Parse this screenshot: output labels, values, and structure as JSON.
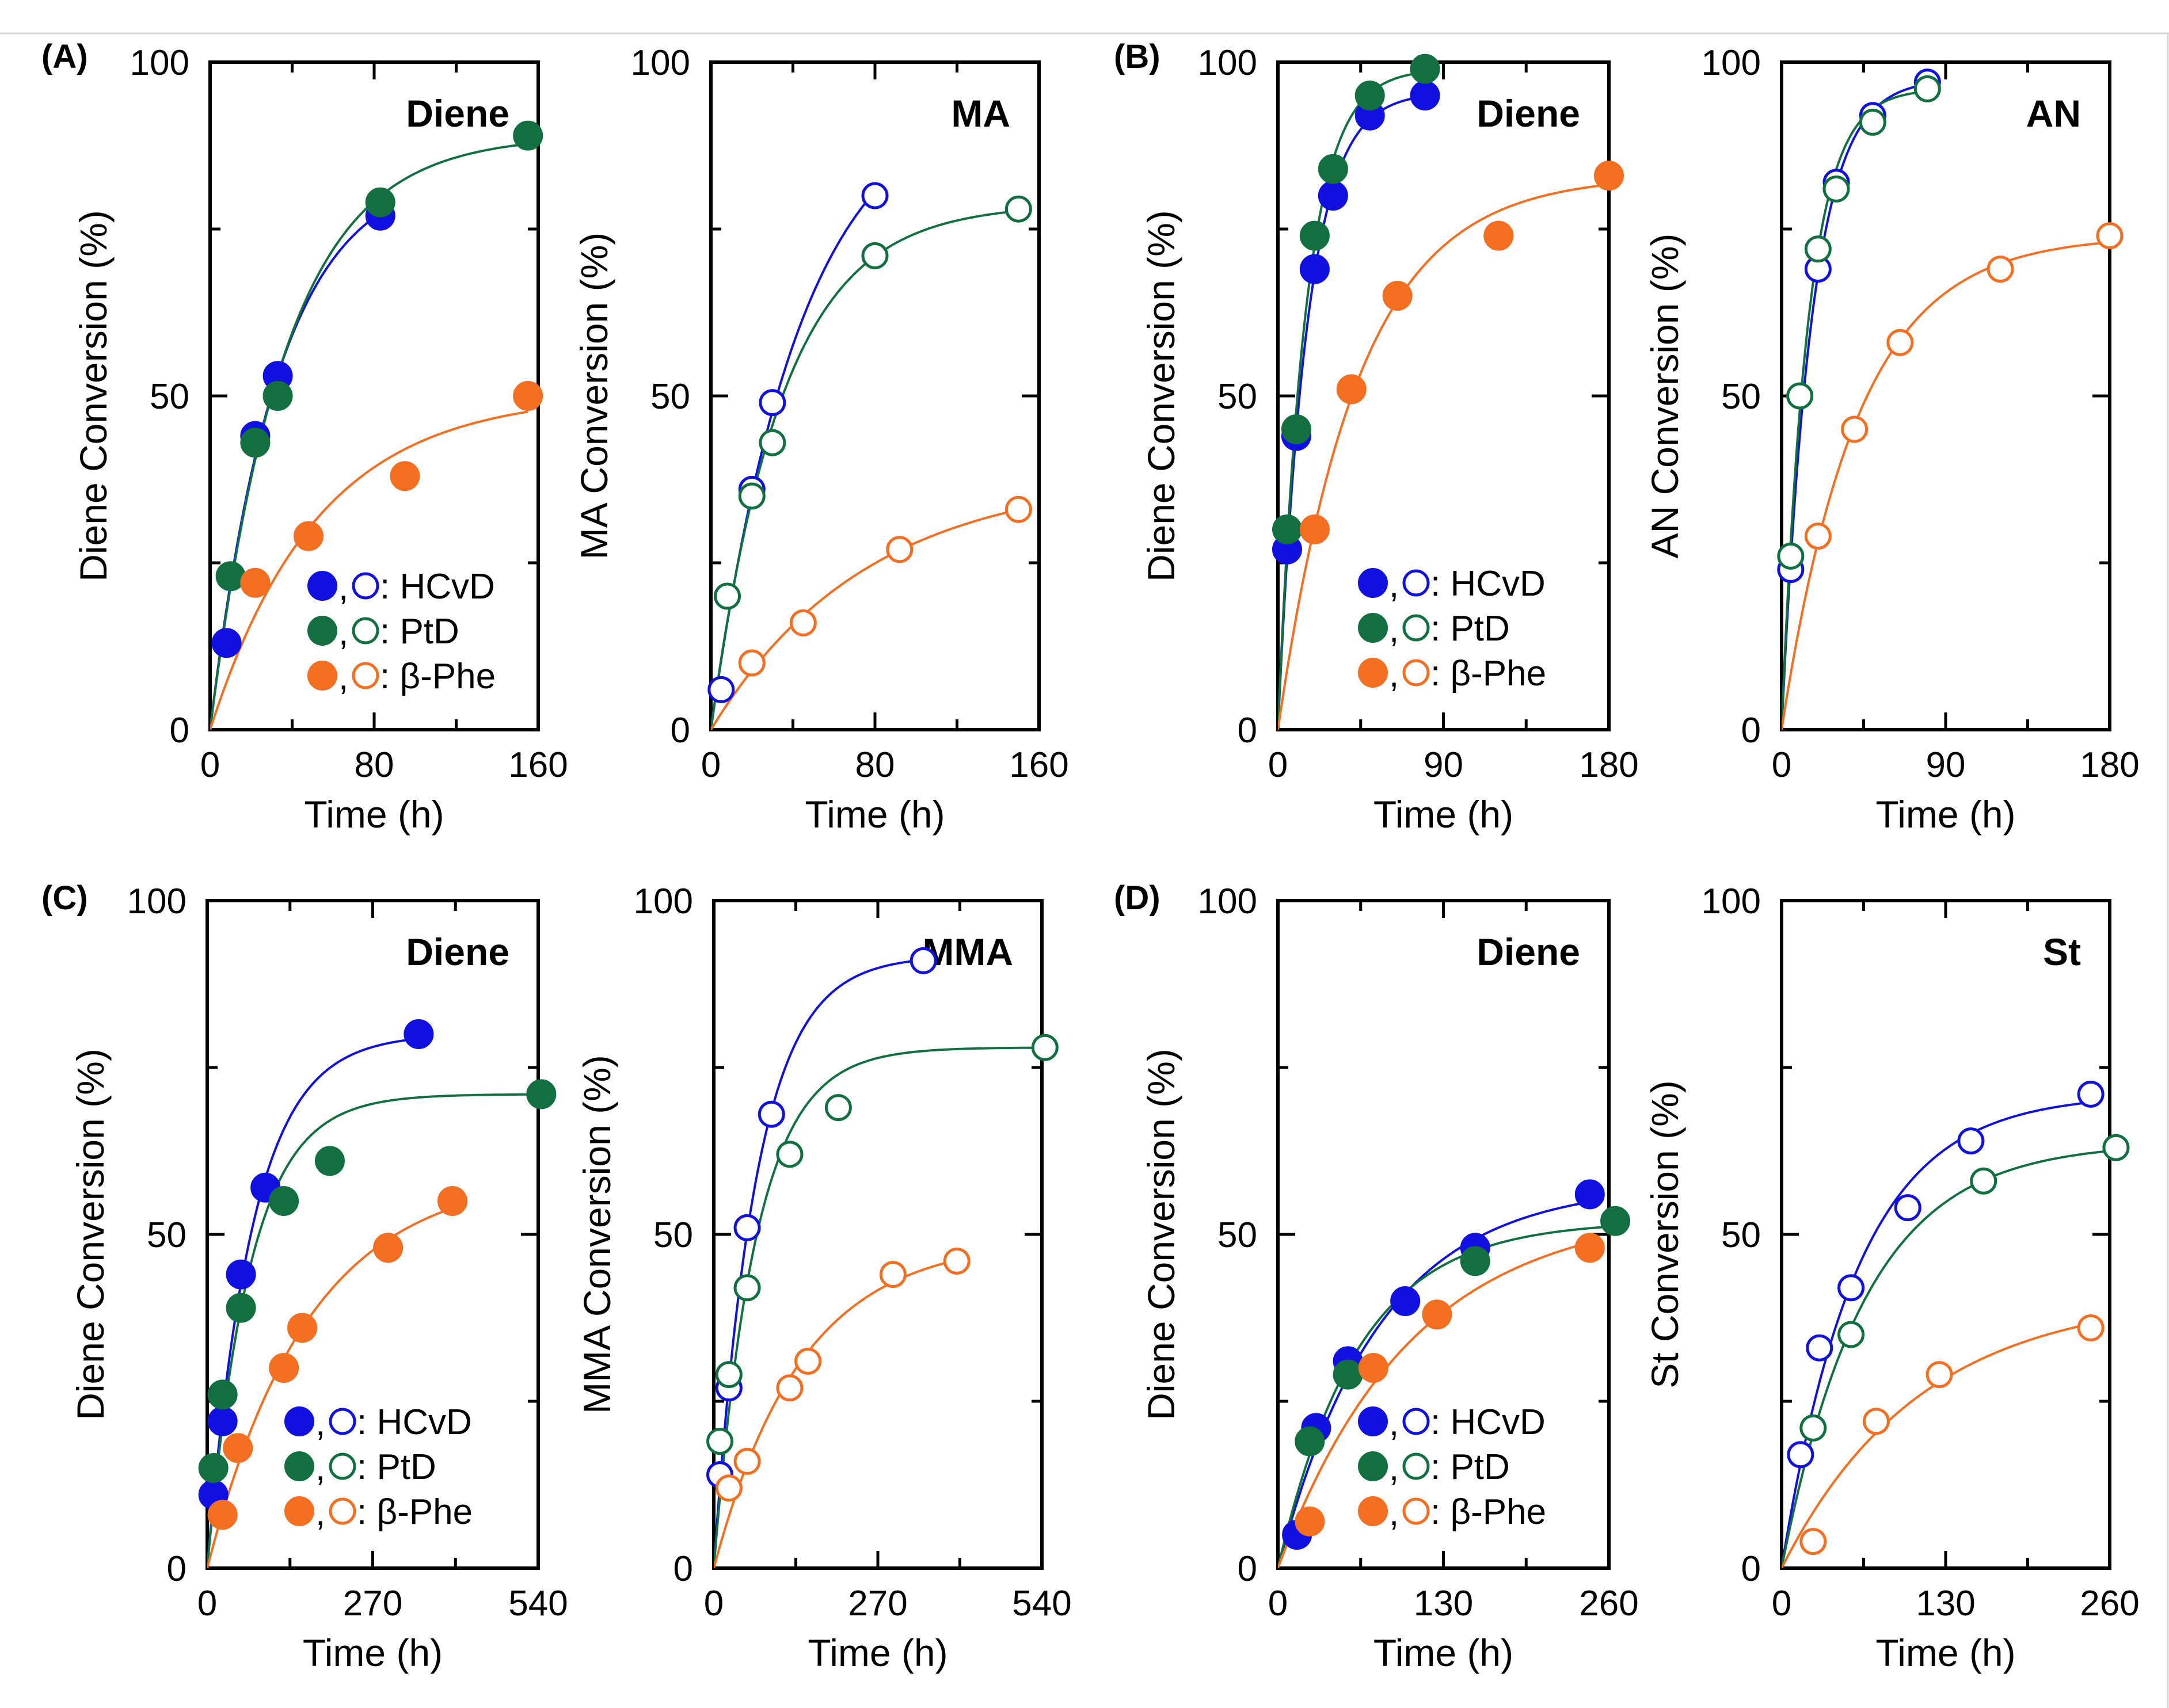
{
  "figure": {
    "panels": [
      {
        "letter": "(A)",
        "charts": [
          0,
          1
        ]
      },
      {
        "letter": "(B)",
        "charts": [
          2,
          3
        ]
      },
      {
        "letter": "(C)",
        "charts": [
          4,
          5
        ]
      },
      {
        "letter": "(D)",
        "charts": [
          6,
          7
        ]
      }
    ],
    "legend": {
      "entries": [
        {
          "marker_separator": ",",
          "label": ": HCvD",
          "color": "#1010e0"
        },
        {
          "marker_separator": ",",
          "label": ": PtD",
          "color": "#127040"
        },
        {
          "marker_separator": ",",
          "label": ": β-Phe",
          "color": "#f46f22"
        }
      ]
    }
  },
  "colors": {
    "HCvD": "#1010e0",
    "PtD": "#127040",
    "beta_Phe": "#f46f22"
  },
  "chart_data": [
    {
      "type": "scatter",
      "panel": "(A)",
      "title": "Diene",
      "xlabel": "Time (h)",
      "ylabel": "Diene Conversion (%)",
      "xlim": [
        0,
        160
      ],
      "ylim": [
        0,
        100
      ],
      "xticks": [
        0,
        80,
        160
      ],
      "yticks": [
        0,
        50,
        100
      ],
      "marker": "filled",
      "show_legend": true,
      "series": [
        {
          "name": "HCvD",
          "x": [
            8,
            22,
            33,
            83
          ],
          "y": [
            13,
            44,
            53,
            77
          ]
        },
        {
          "name": "PtD",
          "x": [
            10,
            22,
            33,
            83,
            155
          ],
          "y": [
            23,
            43,
            50,
            79,
            89
          ]
        },
        {
          "name": "β-Phe",
          "x": [
            22,
            48,
            95,
            155
          ],
          "y": [
            22,
            29,
            38,
            50
          ]
        }
      ]
    },
    {
      "type": "scatter",
      "panel": "(A)",
      "title": "MA",
      "xlabel": "Time (h)",
      "ylabel": "MA Conversion (%)",
      "xlim": [
        0,
        160
      ],
      "ylim": [
        0,
        100
      ],
      "xticks": [
        0,
        80,
        160
      ],
      "yticks": [
        0,
        50,
        100
      ],
      "marker": "open",
      "show_legend": false,
      "series": [
        {
          "name": "HCvD",
          "x": [
            5,
            20,
            30,
            80
          ],
          "y": [
            6,
            36,
            49,
            80
          ]
        },
        {
          "name": "PtD",
          "x": [
            8,
            20,
            30,
            80,
            150
          ],
          "y": [
            20,
            35,
            43,
            71,
            78
          ]
        },
        {
          "name": "β-Phe",
          "x": [
            20,
            45,
            92,
            150
          ],
          "y": [
            10,
            16,
            27,
            33
          ]
        }
      ]
    },
    {
      "type": "scatter",
      "panel": "(B)",
      "title": "Diene",
      "xlabel": "Time (h)",
      "ylabel": "Diene Conversion (%)",
      "xlim": [
        0,
        180
      ],
      "ylim": [
        0,
        100
      ],
      "xticks": [
        0,
        90,
        180
      ],
      "yticks": [
        0,
        50,
        100
      ],
      "marker": "filled",
      "show_legend": true,
      "series": [
        {
          "name": "HCvD",
          "x": [
            5,
            10,
            20,
            30,
            50,
            80
          ],
          "y": [
            27,
            44,
            69,
            80,
            92,
            95
          ]
        },
        {
          "name": "PtD",
          "x": [
            5,
            10,
            20,
            30,
            50,
            80
          ],
          "y": [
            30,
            45,
            74,
            84,
            95,
            99
          ]
        },
        {
          "name": "β-Phe",
          "x": [
            20,
            40,
            65,
            120,
            180
          ],
          "y": [
            30,
            51,
            65,
            74,
            83
          ]
        }
      ]
    },
    {
      "type": "scatter",
      "panel": "(B)",
      "title": "AN",
      "xlabel": "Time (h)",
      "ylabel": "AN Conversion (%)",
      "xlim": [
        0,
        180
      ],
      "ylim": [
        0,
        100
      ],
      "xticks": [
        0,
        90,
        180
      ],
      "yticks": [
        0,
        50,
        100
      ],
      "marker": "open",
      "show_legend": false,
      "series": [
        {
          "name": "HCvD",
          "x": [
            5,
            20,
            30,
            50,
            80
          ],
          "y": [
            24,
            69,
            82,
            92,
            97
          ]
        },
        {
          "name": "PtD",
          "x": [
            5,
            10,
            20,
            30,
            50,
            80
          ],
          "y": [
            26,
            50,
            72,
            81,
            91,
            96
          ]
        },
        {
          "name": "β-Phe",
          "x": [
            20,
            40,
            65,
            120,
            180
          ],
          "y": [
            29,
            45,
            58,
            69,
            74
          ]
        }
      ]
    },
    {
      "type": "scatter",
      "panel": "(C)",
      "title": "Diene",
      "xlabel": "Time (h)",
      "ylabel": "Diene Conversion (%)",
      "xlim": [
        0,
        540
      ],
      "ylim": [
        0,
        100
      ],
      "xticks": [
        0,
        270,
        540
      ],
      "yticks": [
        0,
        50,
        100
      ],
      "marker": "filled",
      "show_legend": true,
      "series": [
        {
          "name": "HCvD",
          "x": [
            10,
            25,
            55,
            95,
            345
          ],
          "y": [
            11,
            22,
            44,
            57,
            80
          ]
        },
        {
          "name": "PtD",
          "x": [
            10,
            25,
            55,
            125,
            200,
            545
          ],
          "y": [
            15,
            26,
            39,
            55,
            61,
            71
          ]
        },
        {
          "name": "β-Phe",
          "x": [
            25,
            50,
            125,
            155,
            295,
            400
          ],
          "y": [
            8,
            18,
            30,
            36,
            48,
            55
          ]
        }
      ]
    },
    {
      "type": "scatter",
      "panel": "(C)",
      "title": "MMA",
      "xlabel": "Time (h)",
      "ylabel": "MMA Conversion (%)",
      "xlim": [
        0,
        540
      ],
      "ylim": [
        0,
        100
      ],
      "xticks": [
        0,
        270,
        540
      ],
      "yticks": [
        0,
        50,
        100
      ],
      "marker": "open",
      "show_legend": false,
      "series": [
        {
          "name": "HCvD",
          "x": [
            10,
            25,
            55,
            95,
            345
          ],
          "y": [
            14,
            27,
            51,
            68,
            91
          ]
        },
        {
          "name": "PtD",
          "x": [
            10,
            25,
            55,
            125,
            205,
            545
          ],
          "y": [
            19,
            29,
            42,
            62,
            69,
            78
          ]
        },
        {
          "name": "β-Phe",
          "x": [
            25,
            55,
            125,
            155,
            295,
            400
          ],
          "y": [
            12,
            16,
            27,
            31,
            44,
            46
          ]
        }
      ]
    },
    {
      "type": "scatter",
      "panel": "(D)",
      "title": "Diene",
      "xlabel": "Time (h)",
      "ylabel": "Diene Conversion (%)",
      "xlim": [
        0,
        260
      ],
      "ylim": [
        0,
        100
      ],
      "xticks": [
        0,
        130,
        260
      ],
      "yticks": [
        0,
        50,
        100
      ],
      "marker": "filled",
      "show_legend": true,
      "series": [
        {
          "name": "HCvD",
          "x": [
            15,
            30,
            55,
            100,
            155,
            245
          ],
          "y": [
            5,
            21,
            31,
            40,
            48,
            56
          ]
        },
        {
          "name": "PtD",
          "x": [
            25,
            55,
            155,
            265
          ],
          "y": [
            19,
            29,
            46,
            52
          ]
        },
        {
          "name": "β-Phe",
          "x": [
            25,
            75,
            125,
            245
          ],
          "y": [
            7,
            30,
            38,
            48
          ]
        }
      ]
    },
    {
      "type": "scatter",
      "panel": "(D)",
      "title": "St",
      "xlabel": "Time (h)",
      "ylabel": "St Conversion (%)",
      "xlim": [
        0,
        260
      ],
      "ylim": [
        0,
        100
      ],
      "xticks": [
        0,
        130,
        260
      ],
      "yticks": [
        0,
        50,
        100
      ],
      "marker": "open",
      "show_legend": false,
      "series": [
        {
          "name": "HCvD",
          "x": [
            15,
            30,
            55,
            100,
            150,
            245
          ],
          "y": [
            17,
            33,
            42,
            54,
            64,
            71
          ]
        },
        {
          "name": "PtD",
          "x": [
            25,
            55,
            160,
            265
          ],
          "y": [
            21,
            35,
            58,
            63
          ]
        },
        {
          "name": "β-Phe",
          "x": [
            25,
            75,
            125,
            245
          ],
          "y": [
            4,
            22,
            29,
            36
          ]
        }
      ]
    }
  ]
}
